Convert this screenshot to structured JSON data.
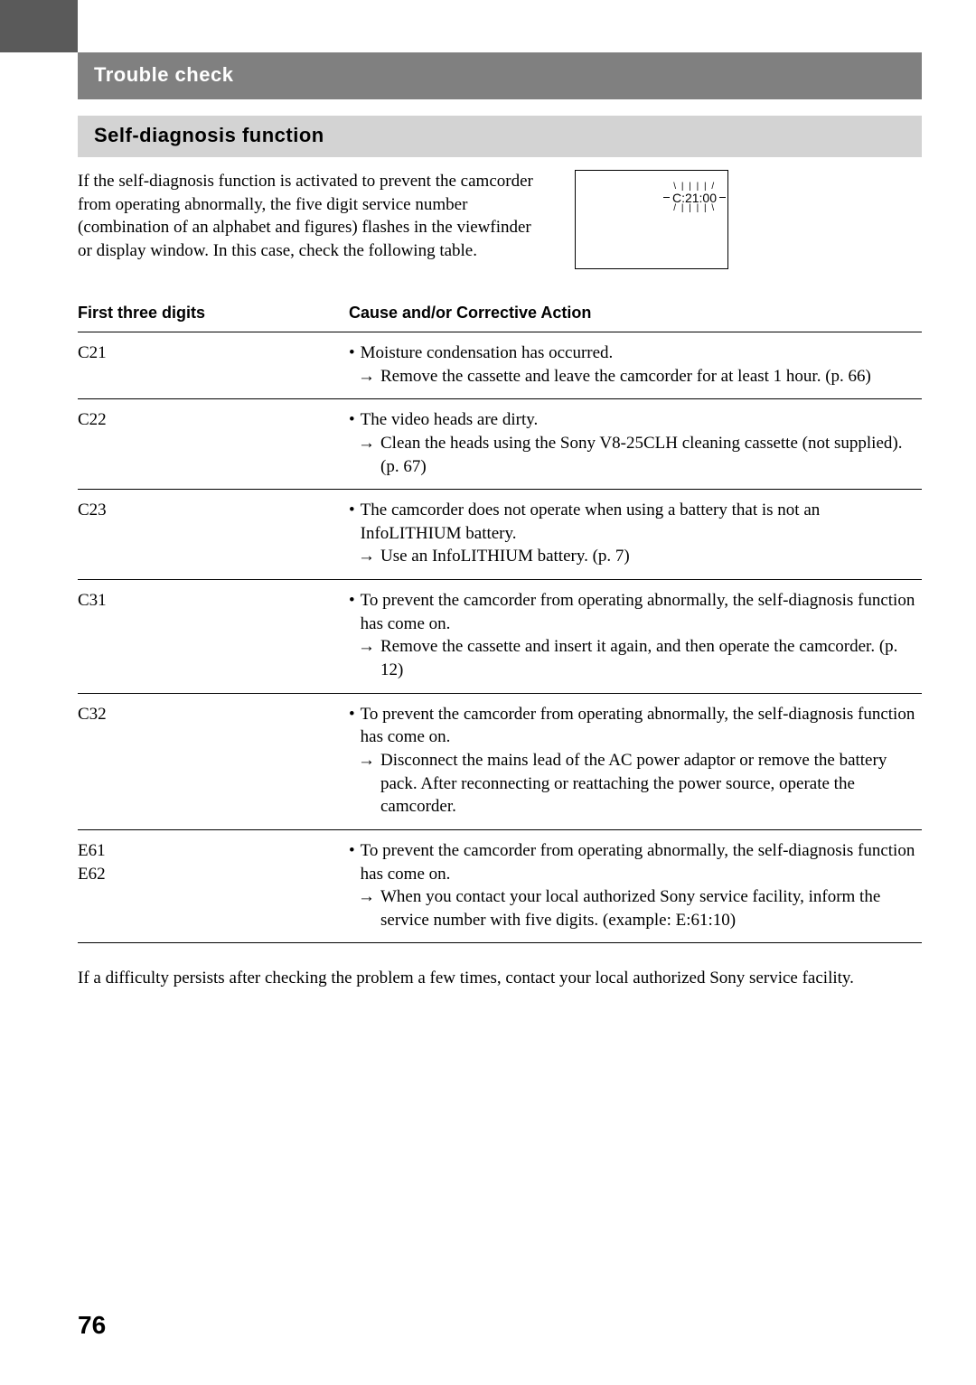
{
  "header": {
    "trouble_check": "Trouble check",
    "section_title": "Self-diagnosis function"
  },
  "intro": {
    "text": "If the self-diagnosis function is activated to prevent the camcorder from operating abnormally, the five digit service number (combination of an alphabet and figures) flashes in the viewfinder or display window. In this case, check the following table."
  },
  "display": {
    "code": "C:21:00"
  },
  "table": {
    "header_digits": "First three digits",
    "header_cause": "Cause and/or Corrective Action",
    "rows": [
      {
        "code": "C21",
        "cause": "Moisture condensation has occurred.",
        "action": "Remove the cassette and leave the camcorder for at least 1 hour. (p. 66)"
      },
      {
        "code": "C22",
        "cause": "The video heads are dirty.",
        "action": "Clean the heads using the Sony V8-25CLH cleaning cassette (not supplied). (p. 67)"
      },
      {
        "code": "C23",
        "cause": "The camcorder does not operate when using a battery that is not an InfoLITHIUM battery.",
        "action": "Use an InfoLITHIUM battery. (p. 7)"
      },
      {
        "code": "C31",
        "cause": "To prevent the camcorder from operating abnormally, the self-diagnosis function has come on.",
        "action": "Remove the cassette and insert it again, and then operate the camcorder. (p. 12)"
      },
      {
        "code": "C32",
        "cause": "To prevent the camcorder from operating abnormally, the self-diagnosis function has come on.",
        "action": "Disconnect the mains lead of the AC power adaptor or remove the battery pack. After reconnecting or reattaching the power source, operate the camcorder."
      },
      {
        "code_line1": "E61",
        "code_line2": "E62",
        "cause": "To prevent the camcorder from operating abnormally, the self-diagnosis function has come on.",
        "action": "When you contact your local authorized Sony service facility, inform the service number with five digits. (example: E:61:10)"
      }
    ]
  },
  "footer": {
    "note": "If a difficulty persists after checking the problem a few times, contact your local  authorized Sony service facility."
  },
  "page_number": "76",
  "colors": {
    "dark_gray": "#5a5a5a",
    "mid_gray": "#808080",
    "light_gray": "#d3d3d3",
    "text": "#000000",
    "bg": "#ffffff"
  },
  "fonts": {
    "heading_family": "Arial, Helvetica, sans-serif",
    "body_family": "Georgia, 'Times New Roman', serif",
    "heading_size": 22,
    "body_size": 19,
    "table_header_size": 18,
    "page_number_size": 28
  }
}
